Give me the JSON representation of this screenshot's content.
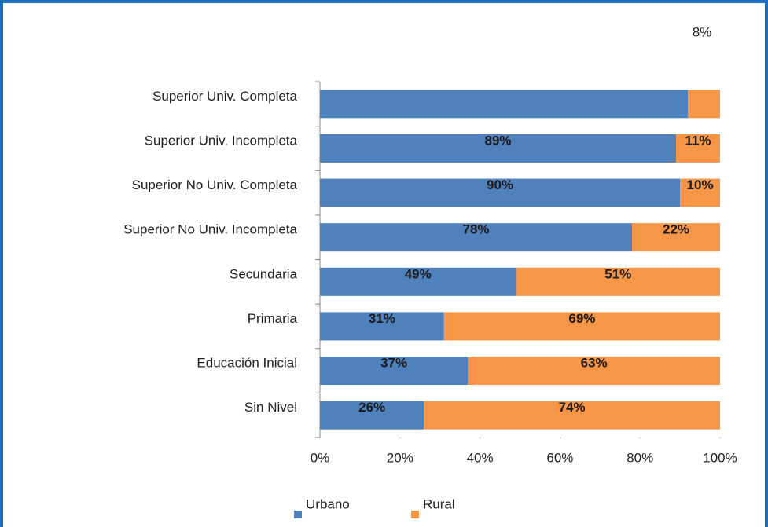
{
  "chart_data": {
    "type": "stacked_barh",
    "categories": [
      "Superior Univ. Completa",
      "Superior Univ. Incompleta",
      "Superior No Univ. Completa",
      "Superior No Univ. Incompleta",
      "Secundaria",
      "Primaria",
      "Educación Inicial",
      "Sin Nivel"
    ],
    "series": [
      {
        "name": "Urbano",
        "color": "#4f81bd",
        "values": [
          92,
          89,
          90,
          78,
          49,
          31,
          37,
          26
        ],
        "value_labels": [
          null,
          "89%",
          "90%",
          "78%",
          "49%",
          "31%",
          "37%",
          "26%"
        ]
      },
      {
        "name": "Rural",
        "color": "#f79646",
        "values": [
          8,
          11,
          10,
          22,
          51,
          69,
          63,
          74
        ],
        "value_labels": [
          "8%",
          "11%",
          "10%",
          "22%",
          "51%",
          "69%",
          "63%",
          "74%"
        ]
      }
    ],
    "xlim": [
      0,
      100
    ],
    "xticks": [
      {
        "value": 0,
        "label": "0%"
      },
      {
        "value": 20,
        "label": "20%"
      },
      {
        "value": 40,
        "label": "40%"
      },
      {
        "value": 60,
        "label": "60%"
      },
      {
        "value": 80,
        "label": "80%"
      },
      {
        "value": 100,
        "label": "100%"
      }
    ],
    "legend": "bottom"
  }
}
